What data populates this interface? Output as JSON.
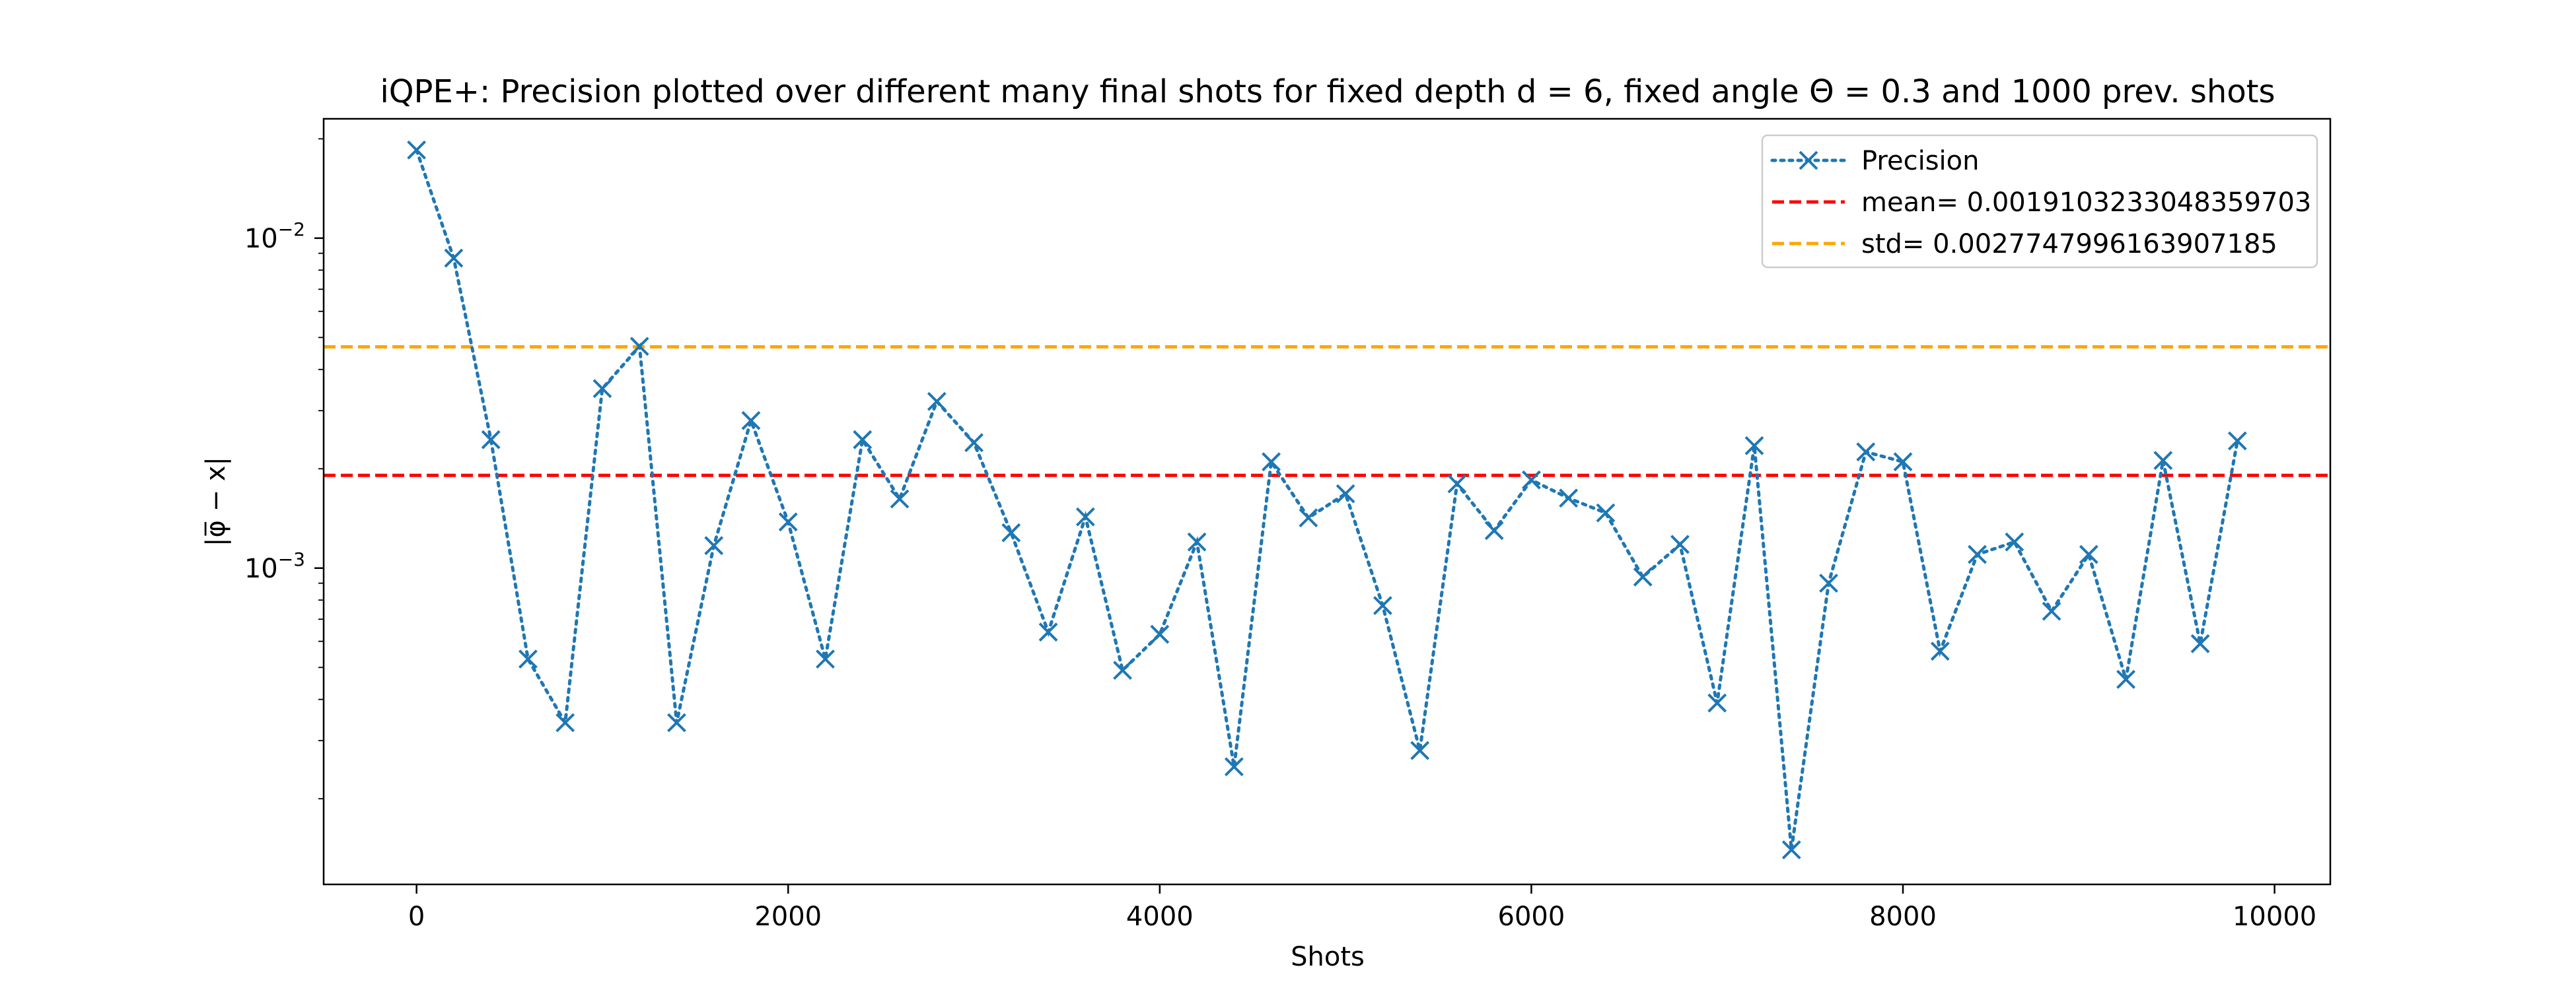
{
  "chart_data": {
    "type": "line",
    "title": "iQPE+: Precision plotted over different many final shots for fixed depth d = 6, fixed angle Θ = 0.3 and 1000 prev. shots",
    "xlabel": "Shots",
    "ylabel": "|φ̅ − x|",
    "yscale": "log",
    "xlim": [
      -500,
      10300
    ],
    "ylim": [
      0.00011,
      0.023
    ],
    "x_ticks": [
      0,
      2000,
      4000,
      6000,
      8000,
      10000
    ],
    "x_tick_labels": [
      "0",
      "2000",
      "4000",
      "6000",
      "8000",
      "10000"
    ],
    "y_ticks": [
      0.001,
      0.01
    ],
    "y_tick_labels": [
      {
        "base": "10",
        "exp": "−3"
      },
      {
        "base": "10",
        "exp": "−2"
      }
    ],
    "grid": false,
    "legend_position": "top-right",
    "series": [
      {
        "name": "Precision",
        "color": "#1f77b4",
        "line_style": "dotted",
        "marker": "x",
        "x": [
          0,
          200,
          400,
          600,
          800,
          1000,
          1200,
          1400,
          1600,
          1800,
          2000,
          2200,
          2400,
          2600,
          2800,
          3000,
          3200,
          3400,
          3600,
          3800,
          4000,
          4200,
          4400,
          4600,
          4800,
          5000,
          5200,
          5400,
          5600,
          5800,
          6000,
          6200,
          6400,
          6600,
          6800,
          7000,
          7200,
          7400,
          7600,
          7800,
          8000,
          8200,
          8400,
          8600,
          8800,
          9000,
          9200,
          9400,
          9600,
          9800
        ],
        "values": [
          0.0185,
          0.0087,
          0.00245,
          0.00053,
          0.00034,
          0.0035,
          0.0047,
          0.00034,
          0.00117,
          0.0028,
          0.00138,
          0.00053,
          0.00245,
          0.00162,
          0.0032,
          0.0024,
          0.00128,
          0.00064,
          0.00143,
          0.00049,
          0.00063,
          0.0012,
          0.00025,
          0.0021,
          0.00142,
          0.00168,
          0.00077,
          0.00028,
          0.0018,
          0.0013,
          0.00185,
          0.00163,
          0.00147,
          0.00094,
          0.00118,
          0.00039,
          0.00235,
          0.00014,
          0.0009,
          0.00225,
          0.0021,
          0.00056,
          0.0011,
          0.0012,
          0.00074,
          0.0011,
          0.00046,
          0.00212,
          0.00059,
          0.00243
        ]
      }
    ],
    "reference_lines": [
      {
        "name": "mean= 0.0019103233048359703",
        "value": 0.0019103233048359703,
        "color": "#ff0000",
        "line_style": "dashed"
      },
      {
        "name": "std= 0.0027747996163907185",
        "value": 0.004685122921226689,
        "color": "#ffa500",
        "line_style": "dashed"
      }
    ]
  }
}
